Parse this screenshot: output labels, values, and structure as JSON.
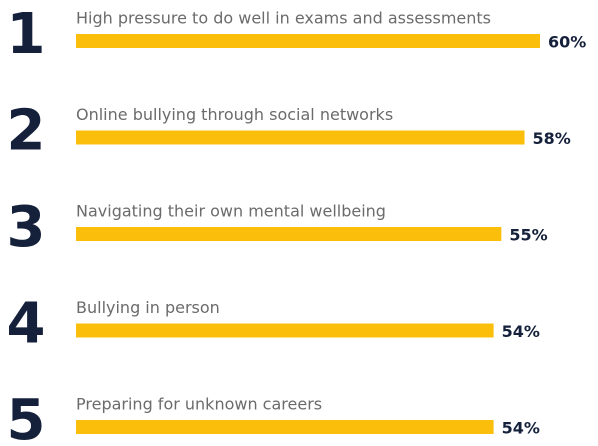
{
  "chart_data": {
    "type": "bar",
    "ranks": [
      1,
      2,
      3,
      4,
      5
    ],
    "categories": [
      "High pressure to do well in exams and assessments",
      "Online bullying through social networks",
      "Navigating their own mental wellbeing",
      "Bullying in person",
      "Preparing for unknown careers"
    ],
    "values": [
      60,
      58,
      55,
      54,
      54
    ],
    "value_labels": [
      "60%",
      "58%",
      "55%",
      "54%",
      "54%"
    ],
    "color": "#fbbf0b"
  }
}
